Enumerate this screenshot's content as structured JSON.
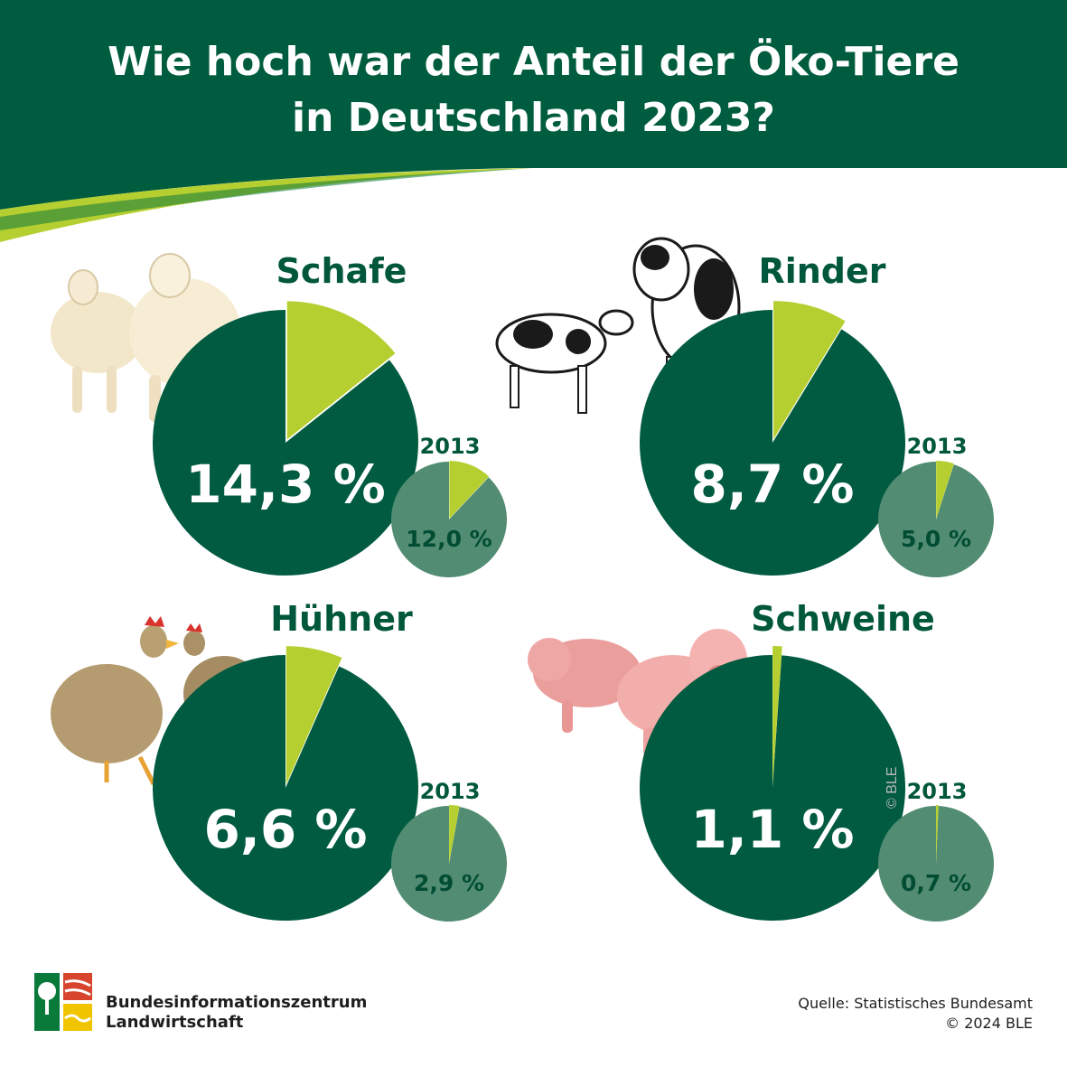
{
  "title": {
    "line1": "Wie hoch war der Anteil der Öko-Tiere",
    "line2": "in Deutschland 2023?"
  },
  "colors": {
    "header_green": "#005c3e",
    "pie_dark": "#015b40",
    "pie_small": "#528c72",
    "slice_lime": "#b5cf30",
    "swoosh_light": "#b5cf30"
  },
  "chart_data": [
    {
      "type": "pie",
      "title": "Schafe",
      "year": "2023",
      "value": 14.3,
      "label": "14,3 %",
      "comparison": {
        "year": "2013",
        "value": 12.0,
        "label": "12,0 %"
      }
    },
    {
      "type": "pie",
      "title": "Rinder",
      "year": "2023",
      "value": 8.7,
      "label": "8,7 %",
      "comparison": {
        "year": "2013",
        "value": 5.0,
        "label": "5,0 %"
      }
    },
    {
      "type": "pie",
      "title": "Hühner",
      "year": "2023",
      "value": 6.6,
      "label": "6,6 %",
      "comparison": {
        "year": "2013",
        "value": 2.9,
        "label": "2,9 %"
      }
    },
    {
      "type": "pie",
      "title": "Schweine",
      "year": "2023",
      "value": 1.1,
      "label": "1,1 %",
      "comparison": {
        "year": "2013",
        "value": 0.7,
        "label": "0,7 %"
      }
    }
  ],
  "images": {
    "schafe": "sheep-illustration",
    "rinder": "cow-and-calf-illustration",
    "huehner": "hens-illustration",
    "schweine": "pigs-illustration"
  },
  "watermark": "© BLE",
  "footer": {
    "org_line1": "Bundesinformationszentrum",
    "org_line2": "Landwirtschaft",
    "source_line1": "Quelle: Statistisches Bundesamt",
    "source_line2": "© 2024 BLE"
  }
}
